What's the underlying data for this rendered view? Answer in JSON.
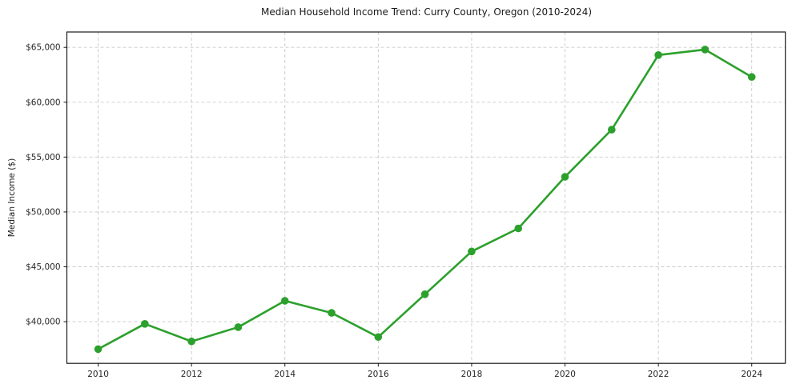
{
  "chart_data": {
    "type": "line",
    "title": "Median Household Income Trend: Curry County, Oregon (2010-2024)",
    "xlabel": "",
    "ylabel": "Median Income ($)",
    "x": [
      2010,
      2011,
      2012,
      2013,
      2014,
      2015,
      2016,
      2017,
      2018,
      2019,
      2020,
      2021,
      2022,
      2023,
      2024
    ],
    "series": [
      {
        "name": "Median Household Income",
        "values": [
          37500,
          39800,
          38200,
          39500,
          41900,
          40800,
          38600,
          42500,
          46400,
          48500,
          53200,
          57500,
          64300,
          64800,
          62300
        ]
      }
    ],
    "xlim": [
      2009.33,
      2024.72
    ],
    "ylim": [
      36200,
      66400
    ],
    "xticks": {
      "values": [
        2010,
        2012,
        2014,
        2016,
        2018,
        2020,
        2022,
        2024
      ],
      "labels": [
        "2010",
        "2012",
        "2014",
        "2016",
        "2018",
        "2020",
        "2022",
        "2024"
      ]
    },
    "yticks": {
      "values": [
        40000,
        45000,
        50000,
        55000,
        60000,
        65000
      ],
      "labels": [
        "$40,000",
        "$45,000",
        "$50,000",
        "$55,000",
        "$60,000",
        "$65,000"
      ]
    },
    "grid": true,
    "grid_style": "dashed",
    "legend": false,
    "marker": "circle"
  },
  "colors": {
    "line": "#2ca02c",
    "marker_fill": "#2ca02c",
    "grid": "#c9c9c9",
    "spine": "#1a1a1a",
    "tick_text": "#262626",
    "background": "#ffffff"
  }
}
